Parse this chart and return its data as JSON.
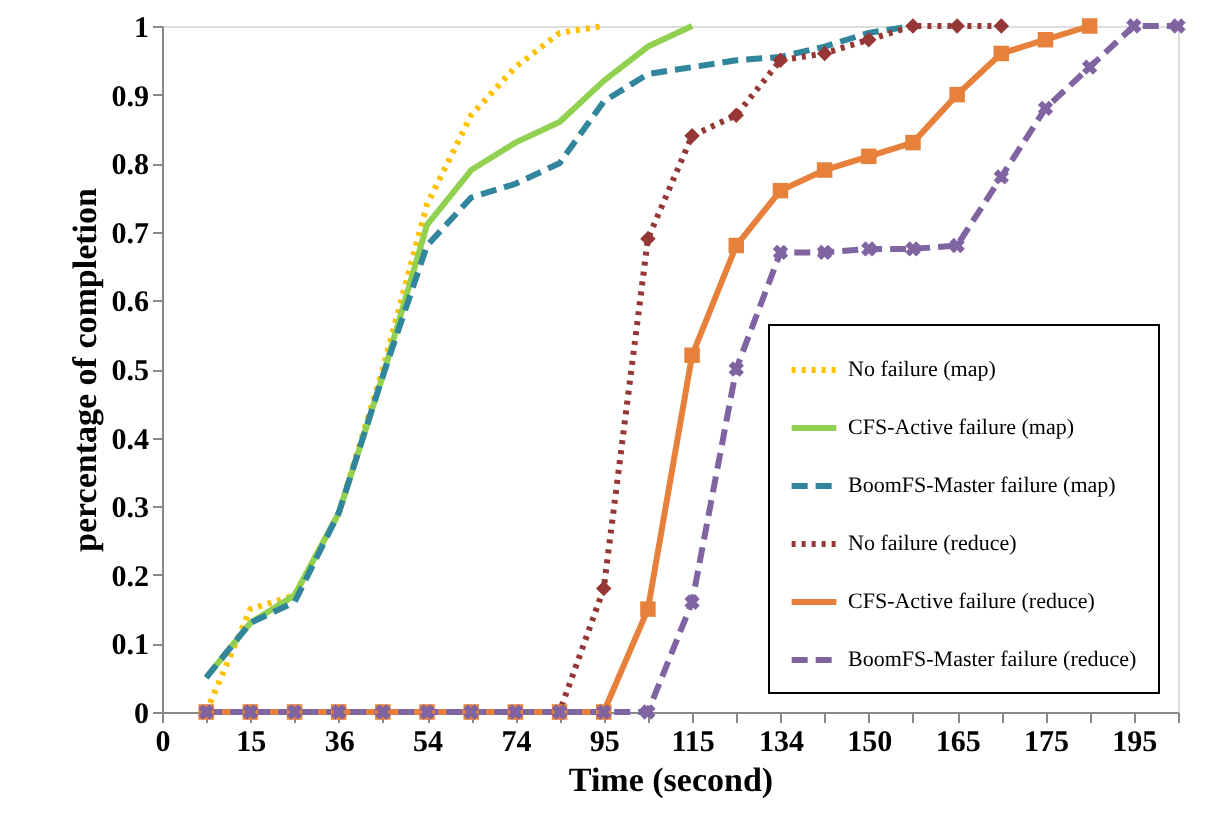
{
  "chart_data": {
    "type": "line",
    "xlabel": "Time (second)",
    "ylabel": "percentage of completion",
    "categories": [
      "0",
      null,
      "15",
      null,
      "36",
      null,
      "54",
      null,
      "74",
      null,
      "95",
      null,
      "115",
      null,
      "134",
      null,
      "150",
      null,
      "165",
      null,
      "175",
      null,
      "195",
      null
    ],
    "ylim": [
      0,
      1
    ],
    "yticks": [
      0,
      0.1,
      0.2,
      0.3,
      0.4,
      0.5,
      0.6,
      0.7,
      0.8,
      0.9,
      1
    ],
    "grid": false,
    "legend": "bottom right",
    "series": [
      {
        "name": "No failure (map)",
        "color": "#ffc000",
        "line_style": "dotted",
        "marker": "none",
        "values": [
          null,
          0,
          0.15,
          0.17,
          0.29,
          0.5,
          0.74,
          0.87,
          0.94,
          0.99,
          1,
          null,
          null,
          null,
          null,
          null,
          null,
          null,
          null,
          null,
          null,
          null,
          null,
          null
        ]
      },
      {
        "name": "CFS-Active failure (map)",
        "color": "#92d050",
        "line_style": "solid",
        "marker": "none",
        "values": [
          null,
          0.05,
          0.13,
          0.17,
          0.29,
          0.49,
          0.71,
          0.79,
          0.83,
          0.86,
          0.92,
          0.97,
          1,
          null,
          null,
          null,
          null,
          null,
          null,
          null,
          null,
          null,
          null,
          null
        ]
      },
      {
        "name": "BoomFS-Master failure (map)",
        "color": "#31859c",
        "line_style": "dashed",
        "marker": "none",
        "values": [
          null,
          0.05,
          0.13,
          0.16,
          0.29,
          0.49,
          0.68,
          0.75,
          0.77,
          0.8,
          0.89,
          0.93,
          0.94,
          0.95,
          0.955,
          0.97,
          0.99,
          1,
          null,
          null,
          null,
          null,
          null,
          null
        ]
      },
      {
        "name": "No failure (reduce)",
        "color": "#953735",
        "line_style": "dotted",
        "marker": "diamond",
        "values": [
          null,
          0,
          0,
          0,
          0,
          0,
          0,
          0,
          0,
          0,
          0.18,
          0.69,
          0.84,
          0.87,
          0.95,
          0.96,
          0.98,
          1,
          1,
          1,
          null,
          null,
          null,
          null
        ]
      },
      {
        "name": "CFS-Active failure (reduce)",
        "color": "#e6803a",
        "line_style": "solid",
        "marker": "square",
        "values": [
          null,
          0,
          0,
          0,
          0,
          0,
          0,
          0,
          0,
          0,
          0,
          0.15,
          0.52,
          0.68,
          0.76,
          0.79,
          0.81,
          0.83,
          0.9,
          0.96,
          0.98,
          1,
          null,
          null
        ]
      },
      {
        "name": "BoomFS-Master failure (reduce)",
        "color": "#8064a2",
        "line_style": "dashed",
        "marker": "cross",
        "values": [
          null,
          0,
          0,
          0,
          0,
          0,
          0,
          0,
          0,
          0,
          0,
          0,
          0.16,
          0.5,
          0.67,
          0.67,
          0.675,
          0.675,
          0.68,
          0.78,
          0.88,
          0.94,
          1,
          1
        ]
      }
    ]
  }
}
